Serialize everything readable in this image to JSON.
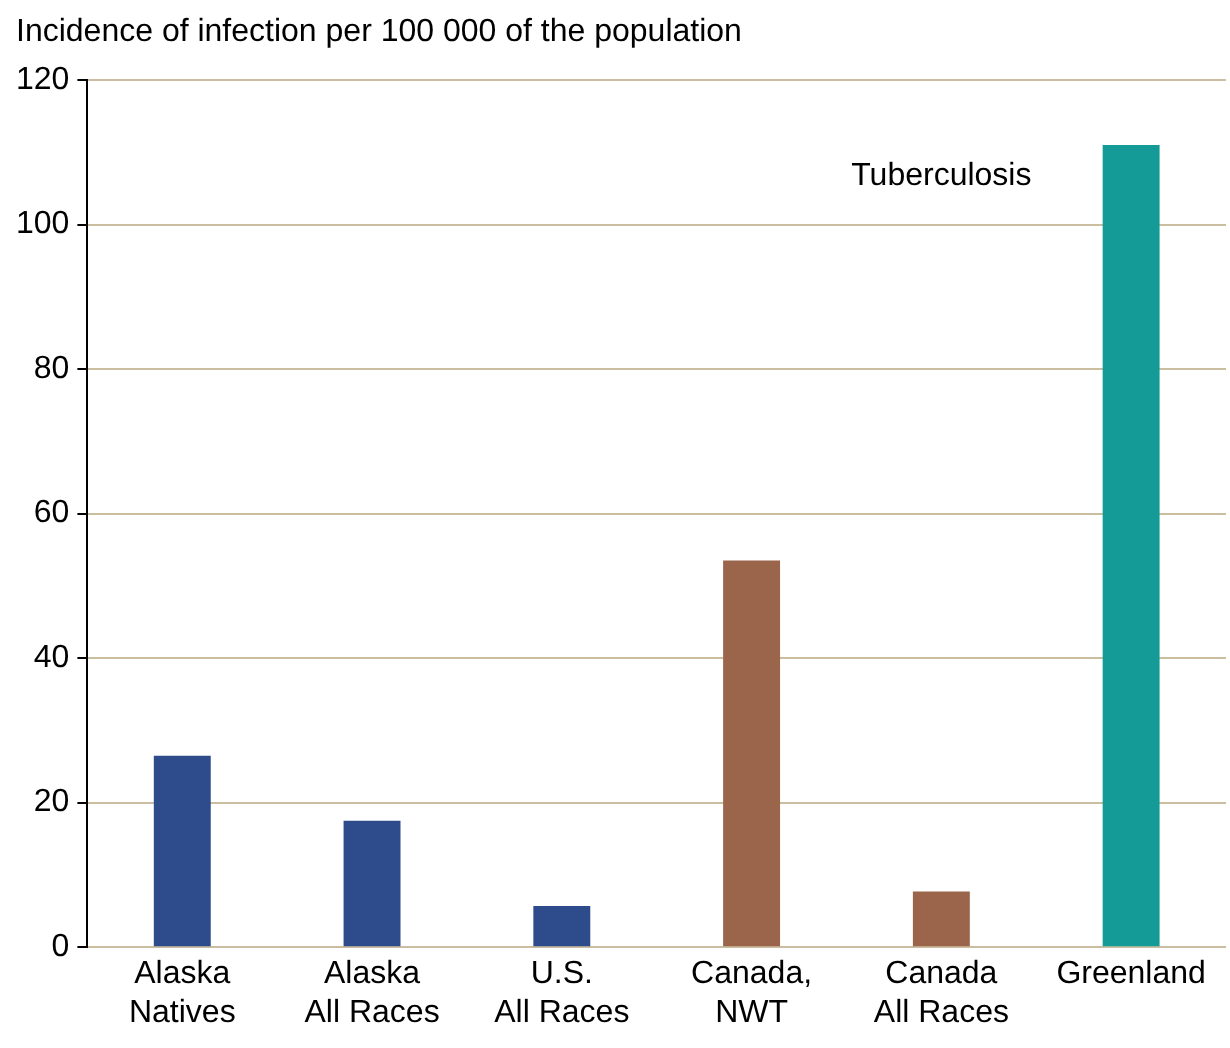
{
  "chart_data": {
    "type": "bar",
    "ylabel": "Incidence of infection per 100 000 of the population",
    "annotations": [
      "Tuberculosis"
    ],
    "categories": [
      "Alaska\nNatives",
      "Alaska\nAll Races",
      "U.S.\nAll Races",
      "Canada,\nNWT",
      "Canada\nAll Races",
      "Greenland"
    ],
    "values": [
      26.5,
      17.5,
      5.7,
      53.5,
      7.7,
      111
    ],
    "colors": [
      "#2e4b8b",
      "#2e4b8b",
      "#2e4b8b",
      "#9a654b",
      "#9a654b",
      "#149b98"
    ],
    "ylim": [
      0,
      120
    ],
    "yticks": [
      0,
      20,
      40,
      60,
      80,
      100,
      120
    ],
    "grid": "y"
  }
}
